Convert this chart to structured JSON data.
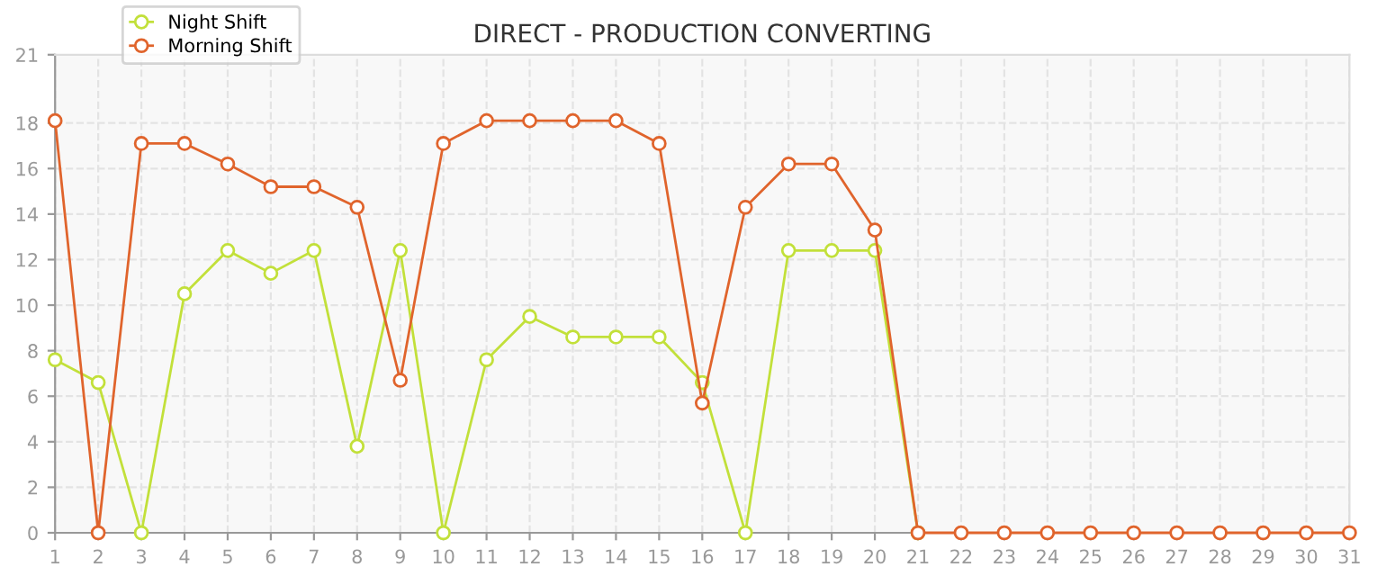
{
  "chart_data": {
    "type": "line",
    "title": "DIRECT - PRODUCTION CONVERTING",
    "x": [
      1,
      2,
      3,
      4,
      5,
      6,
      7,
      8,
      9,
      10,
      11,
      12,
      13,
      14,
      15,
      16,
      17,
      18,
      19,
      20,
      21,
      22,
      23,
      24,
      25,
      26,
      27,
      28,
      29,
      30,
      31
    ],
    "series": [
      {
        "name": "Night Shift",
        "color": "#c2e03a",
        "values": [
          7.6,
          6.6,
          0,
          10.5,
          12.4,
          11.4,
          12.4,
          3.8,
          12.4,
          0,
          7.6,
          9.5,
          8.6,
          8.6,
          8.6,
          6.6,
          0,
          12.4,
          12.4,
          12.4,
          0,
          null,
          null,
          null,
          null,
          null,
          null,
          null,
          null,
          null,
          null
        ]
      },
      {
        "name": "Morning Shift",
        "color": "#e0642c",
        "values": [
          18.1,
          0,
          17.1,
          17.1,
          16.2,
          15.2,
          15.2,
          14.3,
          6.7,
          17.1,
          18.1,
          18.1,
          18.1,
          18.1,
          17.1,
          5.7,
          14.3,
          16.2,
          16.2,
          13.3,
          0,
          0,
          0,
          0,
          0,
          0,
          0,
          0,
          0,
          0,
          0
        ]
      }
    ],
    "xlim": [
      1,
      31
    ],
    "xticks": [
      1,
      2,
      3,
      4,
      5,
      6,
      7,
      8,
      9,
      10,
      11,
      12,
      13,
      14,
      15,
      16,
      17,
      18,
      19,
      20,
      21,
      22,
      23,
      24,
      25,
      26,
      27,
      28,
      29,
      30,
      31
    ],
    "ylim": [
      0,
      21
    ],
    "yticks": [
      0,
      2,
      4,
      6,
      8,
      10,
      12,
      14,
      16,
      18,
      21
    ],
    "grid": true,
    "legend": "top left",
    "marker": "circle",
    "line_style": "solid"
  }
}
